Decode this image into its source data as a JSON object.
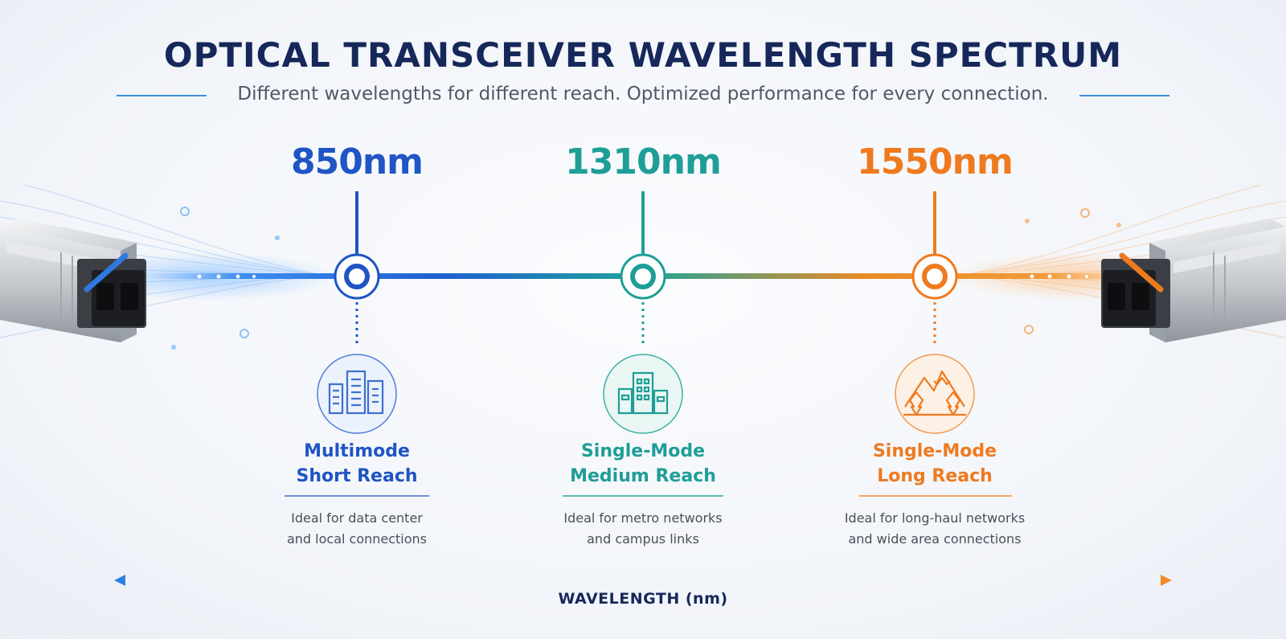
{
  "title": "OPTICAL TRANSCEIVER WAVELENGTH SPECTRUM",
  "subtitle": "Different wavelengths for different reach. Optimized performance for every connection.",
  "points": [
    {
      "wavelength": "850nm",
      "title_line1": "Multimode",
      "title_line2": "Short Reach",
      "desc_line1": "Ideal for data center",
      "desc_line2": "and local connections",
      "icon": "data-center-icon",
      "color": "#1f55c4"
    },
    {
      "wavelength": "1310nm",
      "title_line1": "Single-Mode",
      "title_line2": "Medium Reach",
      "desc_line1": "Ideal for metro networks",
      "desc_line2": "and campus links",
      "icon": "building-icon",
      "color": "#1e9e96"
    },
    {
      "wavelength": "1550nm",
      "title_line1": "Single-Mode",
      "title_line2": "Long Reach",
      "desc_line1": "Ideal for long-haul networks",
      "desc_line2": "and wide area connections",
      "icon": "mountain-icon",
      "color": "#ee7a1f"
    }
  ],
  "axis_label": "WAVELENGTH (nm)"
}
